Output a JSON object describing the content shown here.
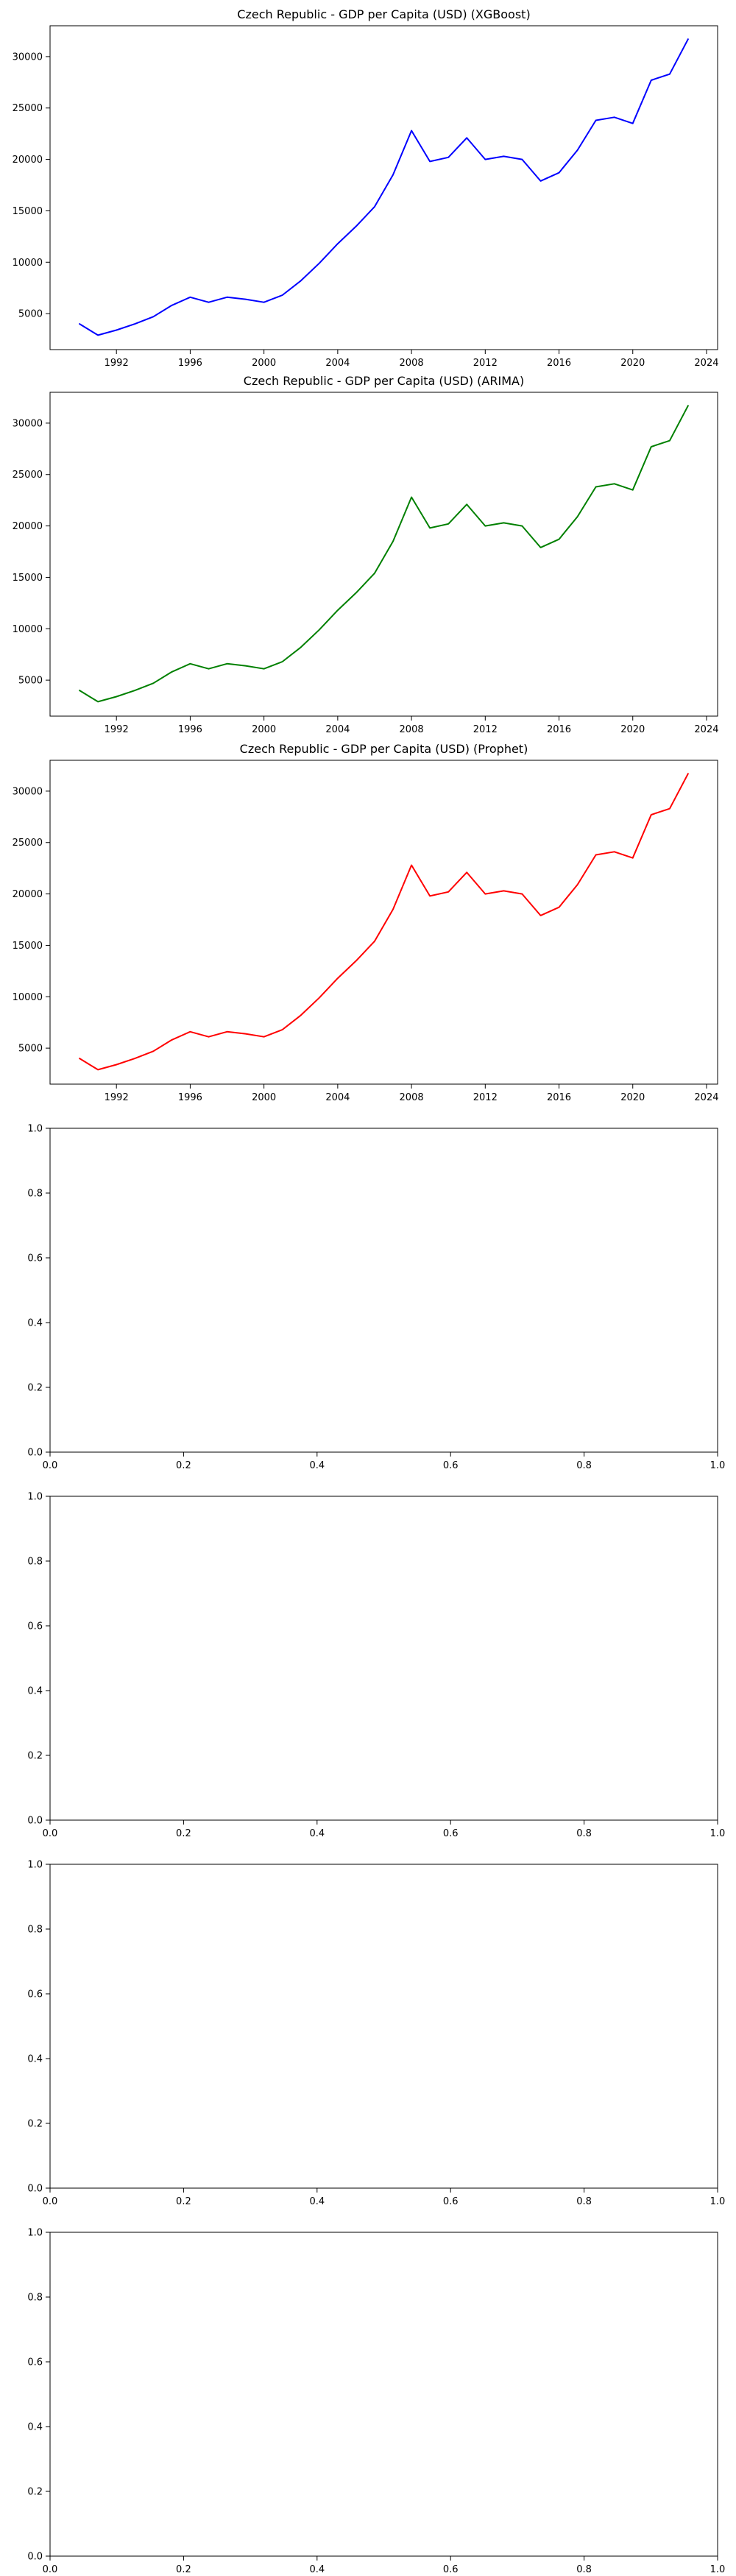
{
  "chart_data": [
    {
      "type": "line",
      "title": "Czech Republic - GDP per Capita (USD) (XGBoost)",
      "color": "#0000ff",
      "xlim": [
        1988.4,
        2024.6
      ],
      "ylim": [
        1500,
        33000
      ],
      "xticks": [
        1992,
        1996,
        2000,
        2004,
        2008,
        2012,
        2016,
        2020,
        2024
      ],
      "yticks": [
        5000,
        10000,
        15000,
        20000,
        25000,
        30000
      ],
      "x": [
        1990,
        1991,
        1992,
        1993,
        1994,
        1995,
        1996,
        1997,
        1998,
        1999,
        2000,
        2001,
        2002,
        2003,
        2004,
        2005,
        2006,
        2007,
        2008,
        2009,
        2010,
        2011,
        2012,
        2013,
        2014,
        2015,
        2016,
        2017,
        2018,
        2019,
        2020,
        2021,
        2022,
        2023
      ],
      "y": [
        4000,
        2900,
        3400,
        4000,
        4700,
        5800,
        6600,
        6100,
        6600,
        6400,
        6100,
        6800,
        8200,
        9900,
        11800,
        13500,
        15400,
        18500,
        22800,
        19800,
        20200,
        22100,
        20000,
        20300,
        20000,
        17900,
        18700,
        20900,
        23800,
        24100,
        23500,
        27700,
        28300,
        31700
      ]
    },
    {
      "type": "line",
      "title": "Czech Republic - GDP per Capita (USD) (ARIMA)",
      "color": "#008000",
      "xlim": [
        1988.4,
        2024.6
      ],
      "ylim": [
        1500,
        33000
      ],
      "xticks": [
        1992,
        1996,
        2000,
        2004,
        2008,
        2012,
        2016,
        2020,
        2024
      ],
      "yticks": [
        5000,
        10000,
        15000,
        20000,
        25000,
        30000
      ],
      "x": [
        1990,
        1991,
        1992,
        1993,
        1994,
        1995,
        1996,
        1997,
        1998,
        1999,
        2000,
        2001,
        2002,
        2003,
        2004,
        2005,
        2006,
        2007,
        2008,
        2009,
        2010,
        2011,
        2012,
        2013,
        2014,
        2015,
        2016,
        2017,
        2018,
        2019,
        2020,
        2021,
        2022,
        2023
      ],
      "y": [
        4000,
        2900,
        3400,
        4000,
        4700,
        5800,
        6600,
        6100,
        6600,
        6400,
        6100,
        6800,
        8200,
        9900,
        11800,
        13500,
        15400,
        18500,
        22800,
        19800,
        20200,
        22100,
        20000,
        20300,
        20000,
        17900,
        18700,
        20900,
        23800,
        24100,
        23500,
        27700,
        28300,
        31700
      ]
    },
    {
      "type": "line",
      "title": "Czech Republic - GDP per Capita (USD) (Prophet)",
      "color": "#ff0000",
      "xlim": [
        1988.4,
        2024.6
      ],
      "ylim": [
        1500,
        33000
      ],
      "xticks": [
        1992,
        1996,
        2000,
        2004,
        2008,
        2012,
        2016,
        2020,
        2024
      ],
      "yticks": [
        5000,
        10000,
        15000,
        20000,
        25000,
        30000
      ],
      "x": [
        1990,
        1991,
        1992,
        1993,
        1994,
        1995,
        1996,
        1997,
        1998,
        1999,
        2000,
        2001,
        2002,
        2003,
        2004,
        2005,
        2006,
        2007,
        2008,
        2009,
        2010,
        2011,
        2012,
        2013,
        2014,
        2015,
        2016,
        2017,
        2018,
        2019,
        2020,
        2021,
        2022,
        2023
      ],
      "y": [
        4000,
        2900,
        3400,
        4000,
        4700,
        5800,
        6600,
        6100,
        6600,
        6400,
        6100,
        6800,
        8200,
        9900,
        11800,
        13500,
        15400,
        18500,
        22800,
        19800,
        20200,
        22100,
        20000,
        20300,
        20000,
        17900,
        18700,
        20900,
        23800,
        24100,
        23500,
        27700,
        28300,
        31700
      ]
    },
    {
      "type": "line",
      "title": "",
      "xlim": [
        0,
        1
      ],
      "ylim": [
        0,
        1
      ],
      "xticks": [
        "0.0",
        "0.2",
        "0.4",
        "0.6",
        "0.8",
        "1.0"
      ],
      "yticks": [
        "0.0",
        "0.2",
        "0.4",
        "0.6",
        "0.8",
        "1.0"
      ],
      "x": [],
      "y": []
    },
    {
      "type": "line",
      "title": "",
      "xlim": [
        0,
        1
      ],
      "ylim": [
        0,
        1
      ],
      "xticks": [
        "0.0",
        "0.2",
        "0.4",
        "0.6",
        "0.8",
        "1.0"
      ],
      "yticks": [
        "0.0",
        "0.2",
        "0.4",
        "0.6",
        "0.8",
        "1.0"
      ],
      "x": [],
      "y": []
    },
    {
      "type": "line",
      "title": "",
      "xlim": [
        0,
        1
      ],
      "ylim": [
        0,
        1
      ],
      "xticks": [
        "0.0",
        "0.2",
        "0.4",
        "0.6",
        "0.8",
        "1.0"
      ],
      "yticks": [
        "0.0",
        "0.2",
        "0.4",
        "0.6",
        "0.8",
        "1.0"
      ],
      "x": [],
      "y": []
    },
    {
      "type": "line",
      "title": "",
      "xlim": [
        0,
        1
      ],
      "ylim": [
        0,
        1
      ],
      "xticks": [
        "0.0",
        "0.2",
        "0.4",
        "0.6",
        "0.8",
        "1.0"
      ],
      "yticks": [
        "0.0",
        "0.2",
        "0.4",
        "0.6",
        "0.8",
        "1.0"
      ],
      "x": [],
      "y": []
    }
  ]
}
